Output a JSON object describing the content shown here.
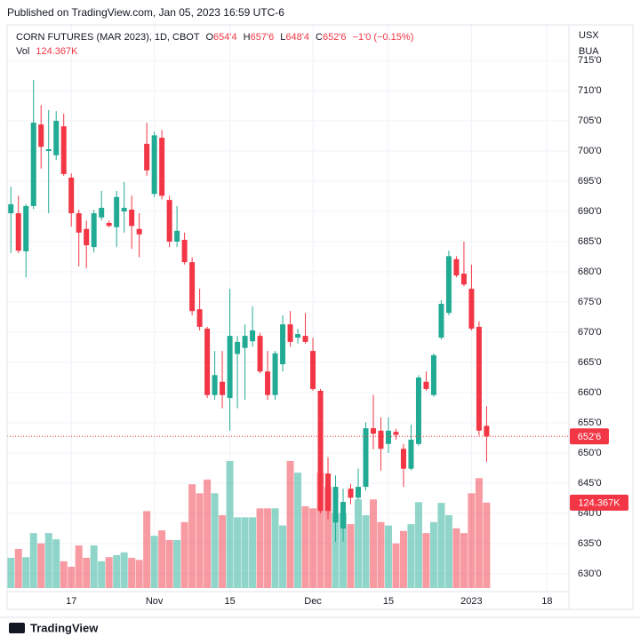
{
  "header": "Published on TradingView.com, Jan 05, 2023 16:59 UTC-6",
  "footer": "TradingView",
  "chart_data": {
    "type": "candlestick",
    "title": "CORN FUTURES (MAR 2023), 1D, CBOT",
    "legend_items": [
      {
        "key": "O",
        "text": "654'4"
      },
      {
        "key": "H",
        "text": "657'6"
      },
      {
        "key": "L",
        "text": "648'4"
      },
      {
        "key": "C",
        "text": "652'6"
      }
    ],
    "change": "−1'0 (−0.15%)",
    "currency": [
      "USX",
      "BUA"
    ],
    "price_tag": "652'6",
    "up_color": "#22ab94",
    "down_color": "#f23645",
    "open": [
      689.7,
      689.7,
      683.4,
      690.9,
      704.4,
      700.0,
      699.3,
      704.1,
      695.6,
      689.7,
      687.1,
      684.1,
      689.0,
      688.1,
      687.4,
      690.0,
      690.3,
      687.1,
      701.2,
      692.9,
      702.2,
      691.9,
      685.0,
      685.3,
      681.6,
      673.8,
      670.6,
      659.6,
      661.8,
      659.1,
      666.4,
      667.4,
      668.5,
      669.4,
      663.5,
      659.6,
      664.7,
      671.3,
      669.1,
      669.4,
      666.9,
      660.3,
      646.6,
      638.5,
      637.5,
      644.1,
      642.6,
      644.4,
      654.1,
      653.7,
      651.5,
      653.5,
      650.7,
      647.4,
      651.5,
      661.8,
      659.6,
      669.1,
      673.2,
      682.1,
      679.7,
      677.2,
      670.9,
      654.5
    ],
    "high": [
      694.1,
      692.6,
      691.2,
      711.8,
      707.6,
      706.8,
      706.6,
      706.2,
      696.3,
      690.3,
      688.5,
      690.3,
      693.4,
      688.5,
      693.4,
      694.9,
      692.6,
      689.7,
      704.7,
      703.2,
      703.5,
      692.6,
      690.9,
      686.5,
      682.4,
      677.2,
      670.9,
      666.9,
      666.9,
      677.2,
      669.4,
      671.3,
      674.3,
      669.9,
      666.9,
      666.9,
      672.8,
      673.5,
      670.6,
      673.2,
      669.1,
      660.6,
      649.3,
      646.3,
      644.1,
      644.9,
      647.4,
      655.1,
      659.6,
      655.9,
      655.9,
      654.0,
      651.5,
      654.7,
      662.9,
      663.5,
      666.5,
      675.3,
      683.5,
      682.6,
      685.0,
      681.2,
      671.8,
      657.75
    ],
    "low": [
      683.1,
      683.1,
      679.1,
      690.4,
      697.1,
      689.7,
      698.5,
      695.9,
      687.5,
      680.9,
      680.6,
      683.2,
      688.5,
      687.4,
      684.1,
      686.5,
      683.8,
      682.4,
      695.9,
      692.4,
      692.0,
      684.1,
      684.1,
      681.2,
      672.8,
      670.3,
      659.1,
      658.8,
      657.4,
      653.7,
      657.4,
      658.8,
      667.6,
      663.2,
      658.8,
      658.8,
      663.5,
      667.6,
      668.1,
      668.1,
      660.3,
      640.0,
      639.0,
      635.3,
      635.3,
      641.5,
      642.2,
      643.8,
      650.6,
      647.1,
      650.0,
      652.2,
      644.4,
      647.1,
      651.2,
      660.3,
      659.3,
      668.8,
      672.8,
      679.1,
      677.6,
      670.3,
      652.9,
      648.5
    ],
    "close": [
      691.2,
      683.5,
      690.9,
      704.7,
      700.7,
      700.3,
      705.0,
      696.2,
      689.7,
      686.5,
      684.4,
      689.7,
      690.6,
      687.6,
      692.4,
      690.6,
      687.6,
      686.2,
      696.8,
      702.6,
      692.6,
      685.0,
      686.8,
      681.6,
      673.5,
      670.9,
      659.6,
      662.9,
      659.6,
      669.4,
      668.4,
      669.4,
      670.3,
      663.5,
      659.6,
      666.5,
      671.3,
      668.4,
      669.7,
      668.4,
      660.6,
      640.4,
      640.4,
      644.4,
      641.9,
      642.6,
      644.4,
      654.1,
      653.2,
      650.7,
      653.7,
      653.0,
      647.4,
      652.2,
      662.5,
      660.6,
      666.2,
      674.7,
      682.6,
      679.4,
      677.9,
      670.6,
      653.7,
      652.75
    ],
    "volume": {
      "name": "Vol",
      "values": [
        44000,
        57000,
        45000,
        80000,
        65000,
        80000,
        71000,
        39000,
        31000,
        62000,
        44000,
        62000,
        39000,
        45000,
        48000,
        52000,
        44000,
        41000,
        112000,
        76000,
        84000,
        70000,
        70000,
        96000,
        151000,
        138000,
        158000,
        138000,
        106000,
        185000,
        103000,
        103000,
        103000,
        116000,
        116000,
        116000,
        91000,
        185000,
        168000,
        119000,
        116000,
        168000,
        147000,
        109000,
        109000,
        93000,
        129000,
        106000,
        129000,
        96000,
        91000,
        65000,
        83000,
        93000,
        125000,
        80000,
        96000,
        124000,
        106000,
        87000,
        80000,
        138000,
        160000,
        124367
      ],
      "value_labels": [
        null,
        null,
        null,
        null,
        null,
        null,
        null,
        null,
        null,
        null,
        null,
        null,
        null,
        null,
        null,
        null,
        null,
        null,
        null,
        null,
        null,
        null,
        null,
        null,
        null,
        null,
        null,
        null,
        null,
        null,
        null,
        null,
        null,
        null,
        null,
        null,
        null,
        null,
        null,
        null,
        null,
        null,
        null,
        null,
        null,
        null,
        null,
        null,
        null,
        null,
        null,
        null,
        null,
        null,
        null,
        null,
        null,
        null,
        null,
        null,
        null,
        null,
        null,
        "124.367K"
      ]
    },
    "volume_ylim": [
      0,
      300000
    ],
    "xlim": [
      -0.5,
      73.9
    ],
    "xticks": [
      {
        "value": 8,
        "label": "17"
      },
      {
        "value": 19,
        "label": "Nov"
      },
      {
        "value": 29,
        "label": "15"
      },
      {
        "value": 40,
        "label": "Dec"
      },
      {
        "value": 50,
        "label": "15"
      },
      {
        "value": 61,
        "label": "2023"
      },
      {
        "value": 71,
        "label": "18"
      }
    ],
    "ylim": [
      627.2,
      720.6
    ],
    "yticks": [
      {
        "value": 630,
        "label": "630'0"
      },
      {
        "value": 635,
        "label": "635'0"
      },
      {
        "value": 640,
        "label": "640'0"
      },
      {
        "value": 645,
        "label": "645'0"
      },
      {
        "value": 650,
        "label": "650'0"
      },
      {
        "value": 655,
        "label": "655'0"
      },
      {
        "value": 660,
        "label": "660'0"
      },
      {
        "value": 665,
        "label": "665'0"
      },
      {
        "value": 670,
        "label": "670'0"
      },
      {
        "value": 675,
        "label": "675'0"
      },
      {
        "value": 680,
        "label": "680'0"
      },
      {
        "value": 685,
        "label": "685'0"
      },
      {
        "value": 690,
        "label": "690'0"
      },
      {
        "value": 695,
        "label": "695'0"
      },
      {
        "value": 700,
        "label": "700'0"
      },
      {
        "value": 705,
        "label": "705'0"
      },
      {
        "value": 710,
        "label": "710'0"
      },
      {
        "value": 715,
        "label": "715'0"
      }
    ],
    "grid": true
  }
}
